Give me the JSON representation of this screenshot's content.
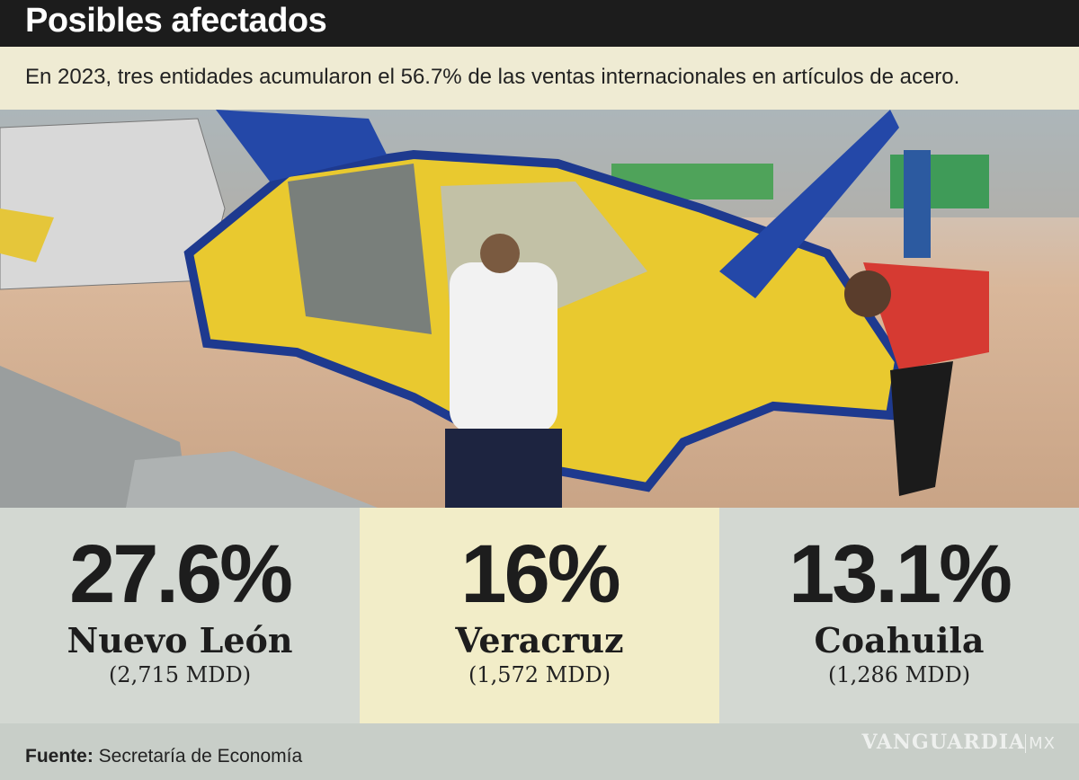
{
  "header": {
    "title": "Posibles afectados",
    "subtitle": "En 2023, tres entidades acumularon el 56.7% de las ventas internacionales en artículos de acero."
  },
  "stats": [
    {
      "value": "27.6%",
      "state": "Nuevo León",
      "amount": "(2,715 MDD)"
    },
    {
      "value": "16%",
      "state": "Veracruz",
      "amount": "(1,572 MDD)"
    },
    {
      "value": "13.1%",
      "state": "Coahuila",
      "amount": "(1,286 MDD)"
    }
  ],
  "footer": {
    "source_label": "Fuente:",
    "source": "Secretaría de Economía",
    "brand": "VANGUARDIA",
    "brand_suffix": "MX"
  }
}
